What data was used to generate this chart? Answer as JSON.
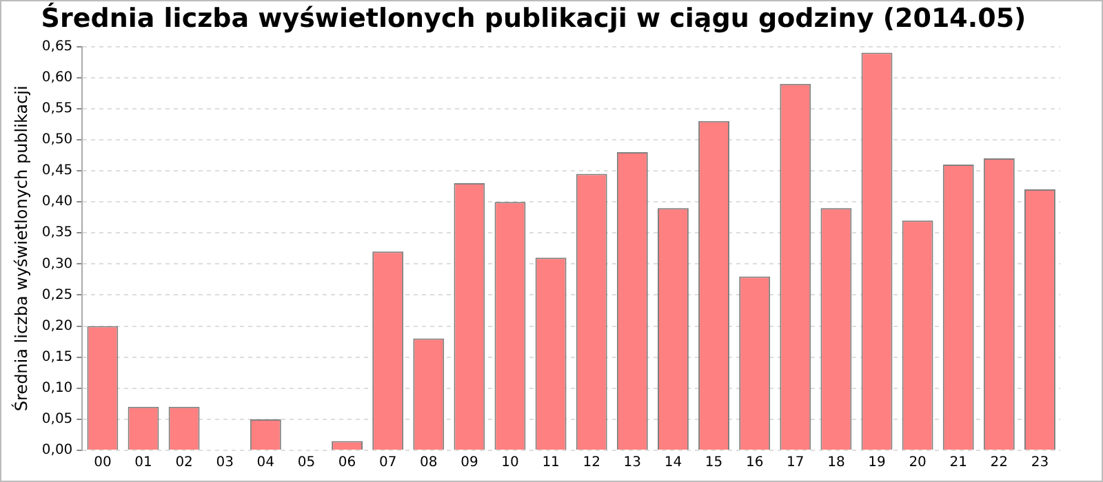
{
  "chart_data": {
    "type": "bar",
    "title": "Średnia liczba wyświetlonych publikacji w ciągu godziny (2014.05)",
    "ylabel": "Średnia liczba wyświetlonych publikacji",
    "categories": [
      "00",
      "01",
      "02",
      "03",
      "04",
      "05",
      "06",
      "07",
      "08",
      "09",
      "10",
      "11",
      "12",
      "13",
      "14",
      "15",
      "16",
      "17",
      "18",
      "19",
      "20",
      "21",
      "22",
      "23"
    ],
    "values": [
      0.2,
      0.07,
      0.07,
      0,
      0.05,
      0,
      0.015,
      0.32,
      0.18,
      0.43,
      0.4,
      0.31,
      0.445,
      0.48,
      0.39,
      0.53,
      0.28,
      0.59,
      0.39,
      0.64,
      0.37,
      0.46,
      0.47,
      0.42
    ],
    "color": "#ff8080",
    "ylim": [
      0,
      0.65
    ],
    "yticks": [
      {
        "value": 0,
        "label": "0,00"
      },
      {
        "value": 0.05,
        "label": "0,05"
      },
      {
        "value": 0.1,
        "label": "0,10"
      },
      {
        "value": 0.15,
        "label": "0,15"
      },
      {
        "value": 0.2,
        "label": "0,20"
      },
      {
        "value": 0.25,
        "label": "0,25"
      },
      {
        "value": 0.3,
        "label": "0,30"
      },
      {
        "value": 0.35,
        "label": "0,35"
      },
      {
        "value": 0.4,
        "label": "0,40"
      },
      {
        "value": 0.45,
        "label": "0,45"
      },
      {
        "value": 0.5,
        "label": "0,50"
      },
      {
        "value": 0.55,
        "label": "0,55"
      },
      {
        "value": 0.6,
        "label": "0,60"
      },
      {
        "value": 0.65,
        "label": "0,65"
      }
    ],
    "grid": "y",
    "legend": false
  }
}
